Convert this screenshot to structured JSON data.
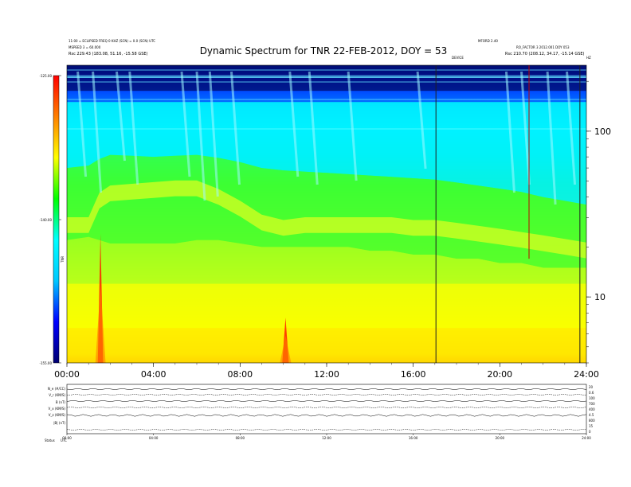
{
  "chart_data": {
    "type": "heatmap",
    "title": "Dynamic Spectrum for TNR 22-FEB-2012, DOY = 53",
    "header_left": [
      "11:00 = ECLIPSED FREQ 0 KHZ (SCN) = 0.0 (SCN) UTC",
      "MSPEED 3 = 60.000",
      "Rsc      229.43 (183.08, 51.16, -15.58 GSE)"
    ],
    "header_right": [
      "MFORD 2.40",
      "RO_FACTOR 3 2012.001 DOY 053",
      "Rsc      210.70 (208.12, 34.17, -15.14 GSE)"
    ],
    "right_header_labels": {
      "center": "DEVICE",
      "right": "HZ"
    },
    "colorbar": {
      "label": "TNR",
      "ticks": [
        "-125.00",
        "-140.00",
        "-155.00"
      ],
      "range": [
        -155,
        -125
      ],
      "colors": [
        "#000070",
        "#0000ff",
        "#00c8ff",
        "#00ffff",
        "#00ff00",
        "#ffff00",
        "#ff8000",
        "#ff0000"
      ]
    },
    "x_ticks": [
      "00:00",
      "04:00",
      "08:00",
      "12:00",
      "16:00",
      "20:00",
      "24:00"
    ],
    "x_range_hours": [
      0,
      24
    ],
    "y_ticks": [
      "100",
      "10"
    ],
    "y_scale": "log",
    "y_range": [
      4,
      250
    ],
    "cutoff_band": {
      "x_hours": [
        0,
        1,
        1.5,
        2,
        3,
        4,
        5,
        6,
        7,
        8,
        9,
        10,
        11,
        12,
        13,
        14,
        15,
        16,
        17,
        18,
        19,
        20,
        21,
        22,
        23,
        24
      ],
      "upper": [
        60,
        62,
        68,
        72,
        71,
        70,
        71,
        72,
        69,
        65,
        60,
        58,
        57,
        56,
        55,
        54,
        53,
        52,
        51,
        49,
        47,
        45,
        43,
        40,
        38,
        36
      ],
      "plasma_line": [
        27,
        27,
        38,
        42,
        43,
        44,
        45,
        45,
        40,
        34,
        28,
        26,
        27,
        27,
        27,
        27,
        27,
        26,
        26,
        25,
        24,
        23,
        22,
        21,
        20,
        19
      ],
      "lower": [
        22,
        23,
        22,
        21,
        21,
        21,
        21,
        22,
        22,
        21,
        20,
        20,
        20,
        20,
        20,
        19,
        19,
        18,
        18,
        17,
        17,
        16,
        16,
        15,
        15,
        15
      ]
    },
    "bursts": [
      {
        "x_hours": 1.55,
        "top": 24,
        "width_hours": 0.25
      },
      {
        "x_hours": 10.1,
        "top": 7.5,
        "width_hours": 0.3
      }
    ],
    "vertical_lines_hours": [
      17.05,
      21.35,
      23.7
    ],
    "bottom_panel": {
      "row_labels": [
        "N_e (#/CC)",
        "V_r (KM/S)",
        "B (nT)",
        "V_x (KM/S)",
        "V_z (KM/S)",
        "|B| (nT)"
      ],
      "right_labels": [
        "20",
        "0.6",
        "100",
        "700",
        "400",
        "4.5",
        "800",
        "15",
        "0"
      ],
      "x_ticks": [
        "00:00",
        "04:00",
        "08:00",
        "12:00",
        "16:00",
        "20:00",
        "24:00"
      ],
      "footer": [
        "Status",
        "UTC"
      ]
    }
  }
}
